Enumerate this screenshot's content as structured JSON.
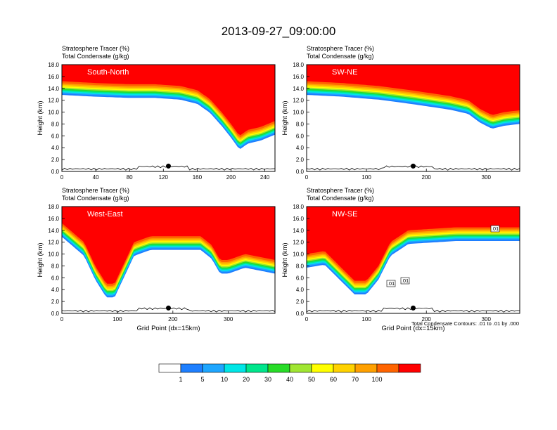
{
  "title": "2013-09-27_09:00:00",
  "colors": {
    "levels": [
      "#ffffff",
      "#1e7fff",
      "#1ea6ff",
      "#00e6e6",
      "#00e68c",
      "#28dc28",
      "#a0e632",
      "#ffff00",
      "#ffd200",
      "#ffa000",
      "#ff6400",
      "#ff0000"
    ],
    "terrain": "#000000",
    "contour": "#000000",
    "station": "#000000"
  },
  "colorbar": {
    "labels": [
      "1",
      "5",
      "10",
      "20",
      "30",
      "40",
      "50",
      "60",
      "70",
      "100"
    ]
  },
  "footnote": "Total Condensate Contours: .01 to .01 by .000",
  "chart_data": [
    {
      "type": "heatmap",
      "panel": "South-North",
      "title_line1": "Stratosphere Tracer   (%)",
      "title_line2": "Total Condensate   (g/kg)",
      "ylabel": "Height (km)",
      "xlabel": "",
      "xlim": [
        0,
        252
      ],
      "ylim": [
        0,
        18
      ],
      "xticks": [
        "0",
        "40",
        "80",
        "120",
        "160",
        "200",
        "240"
      ],
      "yticks": [
        "0.0",
        "2.0",
        "4.0",
        "6.0",
        "8.0",
        "10.0",
        "12.0",
        "14.0",
        "16.0",
        "18.0"
      ],
      "tropopause_km": [
        [
          0,
          15.2
        ],
        [
          40,
          14.9
        ],
        [
          80,
          14.7
        ],
        [
          110,
          14.7
        ],
        [
          140,
          14.4
        ],
        [
          160,
          13.7
        ],
        [
          175,
          12.2
        ],
        [
          190,
          9.8
        ],
        [
          200,
          8.0
        ],
        [
          210,
          6.0
        ],
        [
          220,
          7.0
        ],
        [
          235,
          7.5
        ],
        [
          252,
          8.5
        ]
      ],
      "station_x": 126
    },
    {
      "type": "heatmap",
      "panel": "SW-NE",
      "title_line1": "Stratosphere Tracer   (%)",
      "title_line2": "Total Condensate   (g/kg)",
      "ylabel": "Height (km)",
      "xlabel": "",
      "xlim": [
        0,
        356
      ],
      "ylim": [
        0,
        18
      ],
      "xticks": [
        "0",
        "100",
        "200",
        "300"
      ],
      "yticks": [
        "0.0",
        "2.0",
        "4.0",
        "6.0",
        "8.0",
        "10.0",
        "12.0",
        "14.0",
        "16.0",
        "18.0"
      ],
      "tropopause_km": [
        [
          0,
          15.2
        ],
        [
          60,
          14.9
        ],
        [
          120,
          14.4
        ],
        [
          180,
          13.6
        ],
        [
          240,
          12.7
        ],
        [
          270,
          12.0
        ],
        [
          290,
          10.5
        ],
        [
          310,
          9.5
        ],
        [
          330,
          10.0
        ],
        [
          356,
          10.3
        ]
      ],
      "station_x": 178
    },
    {
      "type": "heatmap",
      "panel": "West-East",
      "title_line1": "Stratosphere Tracer   (%)",
      "title_line2": "Total Condensate   (g/kg)",
      "ylabel": "Height (km)",
      "xlabel": "Grid Point (dx=15km)",
      "xlim": [
        0,
        384
      ],
      "ylim": [
        0,
        18
      ],
      "xticks": [
        "0",
        "100",
        "200",
        "300"
      ],
      "yticks": [
        "0.0",
        "2.0",
        "4.0",
        "6.0",
        "8.0",
        "10.0",
        "12.0",
        "14.0",
        "16.0",
        "18.0"
      ],
      "tropopause_km": [
        [
          0,
          15.2
        ],
        [
          40,
          12.0
        ],
        [
          60,
          8.0
        ],
        [
          80,
          5.0
        ],
        [
          95,
          5.0
        ],
        [
          110,
          8.0
        ],
        [
          130,
          12.0
        ],
        [
          160,
          13.0
        ],
        [
          250,
          13.0
        ],
        [
          270,
          11.5
        ],
        [
          285,
          9.0
        ],
        [
          300,
          9.0
        ],
        [
          330,
          10.0
        ],
        [
          384,
          9.0
        ]
      ],
      "station_x": 192
    },
    {
      "type": "heatmap",
      "panel": "NW-SE",
      "title_line1": "Stratosphere Tracer   (%)",
      "title_line2": "Total Condensate   (g/kg)",
      "ylabel": "Height (km)",
      "xlabel": "Grid Point (dx=15km)",
      "xlim": [
        0,
        356
      ],
      "ylim": [
        0,
        18
      ],
      "xticks": [
        "0",
        "100",
        "200",
        "300"
      ],
      "yticks": [
        "0.0",
        "2.0",
        "4.0",
        "6.0",
        "8.0",
        "10.0",
        "12.0",
        "14.0",
        "16.0",
        "18.0"
      ],
      "tropopause_km": [
        [
          0,
          10.0
        ],
        [
          30,
          10.5
        ],
        [
          55,
          8.0
        ],
        [
          80,
          5.5
        ],
        [
          100,
          5.5
        ],
        [
          120,
          8.0
        ],
        [
          140,
          12.0
        ],
        [
          170,
          14.0
        ],
        [
          250,
          14.5
        ],
        [
          356,
          14.5
        ]
      ],
      "contour_labels": [
        ".01",
        ".01",
        ".01"
      ],
      "station_x": 178
    }
  ]
}
